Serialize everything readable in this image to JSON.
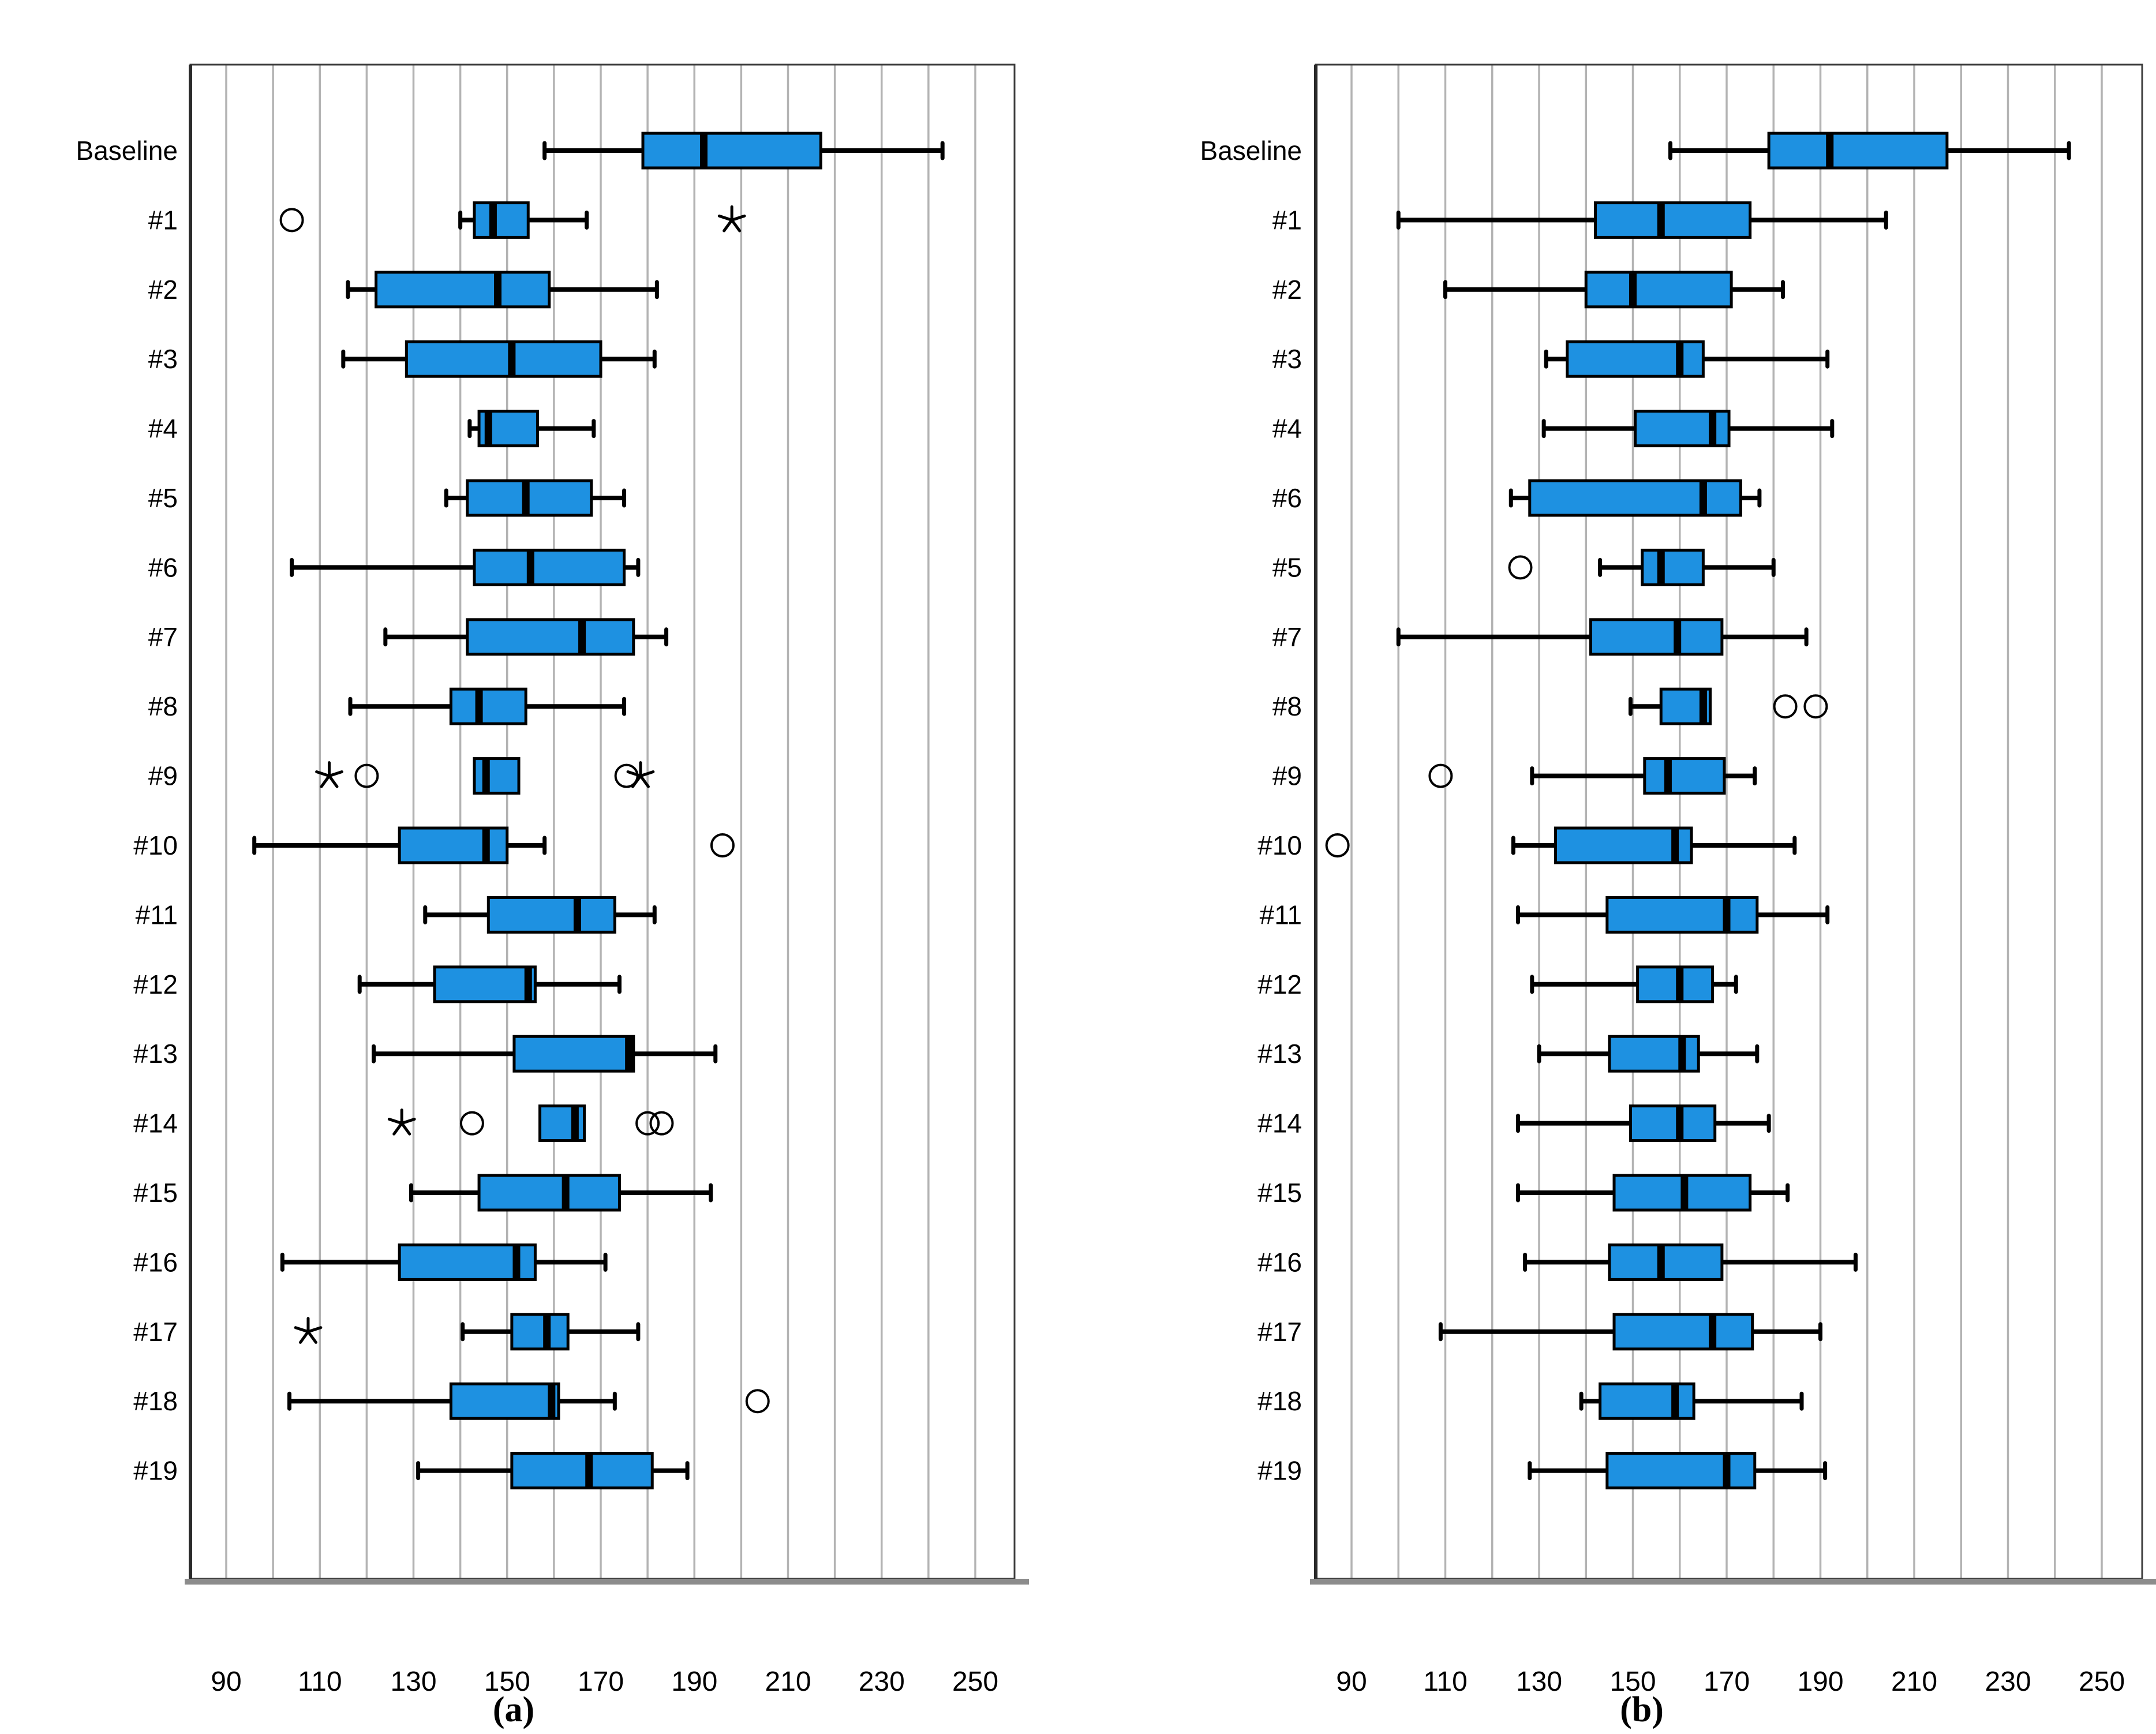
{
  "figure": {
    "caption_a": "(a)",
    "caption_b": "(b)",
    "colors": {
      "box_fill": "#1E91E1",
      "box_stroke": "#000000",
      "gridline": "#b3b3b3",
      "frame": "#3d3d3d",
      "axis_bottom": "#8c8c8c",
      "text": "#000000"
    }
  },
  "chart_data": [
    {
      "type": "boxplot",
      "panel": "a",
      "caption": "(a)",
      "orientation": "horizontal",
      "xlim": [
        82,
        259
      ],
      "grid_step": 10,
      "grid_min": 90,
      "grid_max": 250,
      "xticks": [
        90,
        110,
        130,
        150,
        170,
        190,
        210,
        230,
        250
      ],
      "legend": "none",
      "boxes": [
        {
          "label": "Baseline",
          "whisker_low": 158,
          "q1": 179,
          "median": 192,
          "q3": 217,
          "whisker_high": 243,
          "outliers": [],
          "extremes": []
        },
        {
          "label": "#1",
          "whisker_low": 140,
          "q1": 143,
          "median": 147,
          "q3": 154.5,
          "whisker_high": 167,
          "outliers": [
            104
          ],
          "extremes": [
            198
          ]
        },
        {
          "label": "#2",
          "whisker_low": 116,
          "q1": 122,
          "median": 148,
          "q3": 159,
          "whisker_high": 182,
          "outliers": [],
          "extremes": []
        },
        {
          "label": "#3",
          "whisker_low": 115,
          "q1": 128.5,
          "median": 151,
          "q3": 170,
          "whisker_high": 181.5,
          "outliers": [],
          "extremes": []
        },
        {
          "label": "#4",
          "whisker_low": 142,
          "q1": 144,
          "median": 146,
          "q3": 156.5,
          "whisker_high": 168.5,
          "outliers": [],
          "extremes": []
        },
        {
          "label": "#5",
          "whisker_low": 137,
          "q1": 141.5,
          "median": 154,
          "q3": 168,
          "whisker_high": 175,
          "outliers": [],
          "extremes": []
        },
        {
          "label": "#6",
          "whisker_low": 104,
          "q1": 143,
          "median": 155,
          "q3": 175,
          "whisker_high": 178,
          "outliers": [],
          "extremes": []
        },
        {
          "label": "#7",
          "whisker_low": 124,
          "q1": 141.5,
          "median": 166,
          "q3": 177,
          "whisker_high": 184,
          "outliers": [],
          "extremes": []
        },
        {
          "label": "#8",
          "whisker_low": 116.5,
          "q1": 138,
          "median": 144,
          "q3": 154,
          "whisker_high": 175,
          "outliers": [],
          "extremes": []
        },
        {
          "label": "#9",
          "whisker_low": 143,
          "q1": 143,
          "median": 145.5,
          "q3": 152.5,
          "whisker_high": 152.5,
          "outliers": [
            120,
            175.5
          ],
          "extremes": [
            112,
            178.5
          ]
        },
        {
          "label": "#10",
          "whisker_low": 96,
          "q1": 127,
          "median": 145.5,
          "q3": 150,
          "whisker_high": 158,
          "outliers": [
            196
          ],
          "extremes": []
        },
        {
          "label": "#11",
          "whisker_low": 132.5,
          "q1": 146,
          "median": 165,
          "q3": 173,
          "whisker_high": 181.5,
          "outliers": [],
          "extremes": []
        },
        {
          "label": "#12",
          "whisker_low": 118.5,
          "q1": 134.5,
          "median": 154.5,
          "q3": 156,
          "whisker_high": 174,
          "outliers": [],
          "extremes": []
        },
        {
          "label": "#13",
          "whisker_low": 121.5,
          "q1": 151.5,
          "median": 176,
          "q3": 177,
          "whisker_high": 194.5,
          "outliers": [],
          "extremes": []
        },
        {
          "label": "#14",
          "whisker_low": 157,
          "q1": 157,
          "median": 164.5,
          "q3": 166.5,
          "whisker_high": 166.5,
          "outliers": [
            142.5,
            180,
            183
          ],
          "extremes": [
            127.5
          ]
        },
        {
          "label": "#15",
          "whisker_low": 129.5,
          "q1": 144,
          "median": 162.5,
          "q3": 174,
          "whisker_high": 193.5,
          "outliers": [],
          "extremes": []
        },
        {
          "label": "#16",
          "whisker_low": 102,
          "q1": 127,
          "median": 152,
          "q3": 156,
          "whisker_high": 171,
          "outliers": [],
          "extremes": []
        },
        {
          "label": "#17",
          "whisker_low": 140.5,
          "q1": 151,
          "median": 158.5,
          "q3": 163,
          "whisker_high": 178,
          "outliers": [],
          "extremes": [
            107.5
          ]
        },
        {
          "label": "#18",
          "whisker_low": 103.5,
          "q1": 138,
          "median": 159.5,
          "q3": 161,
          "whisker_high": 173,
          "outliers": [
            203.5
          ],
          "extremes": []
        },
        {
          "label": "#19",
          "whisker_low": 131,
          "q1": 151,
          "median": 167.5,
          "q3": 181,
          "whisker_high": 188.5,
          "outliers": [],
          "extremes": []
        }
      ]
    },
    {
      "type": "boxplot",
      "panel": "b",
      "caption": "(b)",
      "orientation": "horizontal",
      "xlim": [
        82,
        259
      ],
      "grid_step": 10,
      "grid_min": 90,
      "grid_max": 250,
      "xticks": [
        90,
        110,
        130,
        150,
        170,
        190,
        210,
        230,
        250
      ],
      "legend": "none",
      "boxes": [
        {
          "label": "Baseline",
          "whisker_low": 158,
          "q1": 179,
          "median": 192,
          "q3": 217,
          "whisker_high": 243,
          "outliers": [],
          "extremes": []
        },
        {
          "label": "#1",
          "whisker_low": 100,
          "q1": 142,
          "median": 156,
          "q3": 175,
          "whisker_high": 204,
          "outliers": [],
          "extremes": []
        },
        {
          "label": "#2",
          "whisker_low": 110,
          "q1": 140,
          "median": 150,
          "q3": 171,
          "whisker_high": 182,
          "outliers": [],
          "extremes": []
        },
        {
          "label": "#3",
          "whisker_low": 131.5,
          "q1": 136,
          "median": 160,
          "q3": 165,
          "whisker_high": 191.5,
          "outliers": [],
          "extremes": []
        },
        {
          "label": "#4",
          "whisker_low": 131,
          "q1": 150.5,
          "median": 167,
          "q3": 170.5,
          "whisker_high": 192.5,
          "outliers": [],
          "extremes": []
        },
        {
          "label": "#6",
          "whisker_low": 124,
          "q1": 128,
          "median": 165,
          "q3": 173,
          "whisker_high": 177,
          "outliers": [],
          "extremes": []
        },
        {
          "label": "#5",
          "whisker_low": 143,
          "q1": 152,
          "median": 156,
          "q3": 165,
          "whisker_high": 180,
          "outliers": [
            126
          ],
          "extremes": []
        },
        {
          "label": "#7",
          "whisker_low": 100,
          "q1": 141,
          "median": 159.5,
          "q3": 169,
          "whisker_high": 187,
          "outliers": [],
          "extremes": []
        },
        {
          "label": "#8",
          "whisker_low": 149.5,
          "q1": 156,
          "median": 165,
          "q3": 166.5,
          "whisker_high": 166.5,
          "outliers": [
            182.5,
            189
          ],
          "extremes": []
        },
        {
          "label": "#9",
          "whisker_low": 128.5,
          "q1": 152.5,
          "median": 157.5,
          "q3": 169.5,
          "whisker_high": 176,
          "outliers": [
            109
          ],
          "extremes": []
        },
        {
          "label": "#10",
          "whisker_low": 124.5,
          "q1": 133.5,
          "median": 159,
          "q3": 162.5,
          "whisker_high": 184.5,
          "outliers": [
            87
          ],
          "extremes": []
        },
        {
          "label": "#11",
          "whisker_low": 125.5,
          "q1": 144.5,
          "median": 170,
          "q3": 176.5,
          "whisker_high": 191.5,
          "outliers": [],
          "extremes": []
        },
        {
          "label": "#12",
          "whisker_low": 128.5,
          "q1": 151,
          "median": 160,
          "q3": 167,
          "whisker_high": 172,
          "outliers": [],
          "extremes": []
        },
        {
          "label": "#13",
          "whisker_low": 130,
          "q1": 145,
          "median": 160.5,
          "q3": 164,
          "whisker_high": 176.5,
          "outliers": [],
          "extremes": []
        },
        {
          "label": "#14",
          "whisker_low": 125.5,
          "q1": 149.5,
          "median": 160,
          "q3": 167.5,
          "whisker_high": 179,
          "outliers": [],
          "extremes": []
        },
        {
          "label": "#15",
          "whisker_low": 125.5,
          "q1": 146,
          "median": 161,
          "q3": 175,
          "whisker_high": 183,
          "outliers": [],
          "extremes": []
        },
        {
          "label": "#16",
          "whisker_low": 127,
          "q1": 145,
          "median": 156,
          "q3": 169,
          "whisker_high": 197.5,
          "outliers": [],
          "extremes": []
        },
        {
          "label": "#17",
          "whisker_low": 109,
          "q1": 146,
          "median": 167,
          "q3": 175.5,
          "whisker_high": 190,
          "outliers": [],
          "extremes": []
        },
        {
          "label": "#18",
          "whisker_low": 139,
          "q1": 143,
          "median": 159,
          "q3": 163,
          "whisker_high": 186,
          "outliers": [],
          "extremes": []
        },
        {
          "label": "#19",
          "whisker_low": 128,
          "q1": 144.5,
          "median": 170,
          "q3": 176,
          "whisker_high": 191,
          "outliers": [],
          "extremes": []
        }
      ]
    }
  ]
}
